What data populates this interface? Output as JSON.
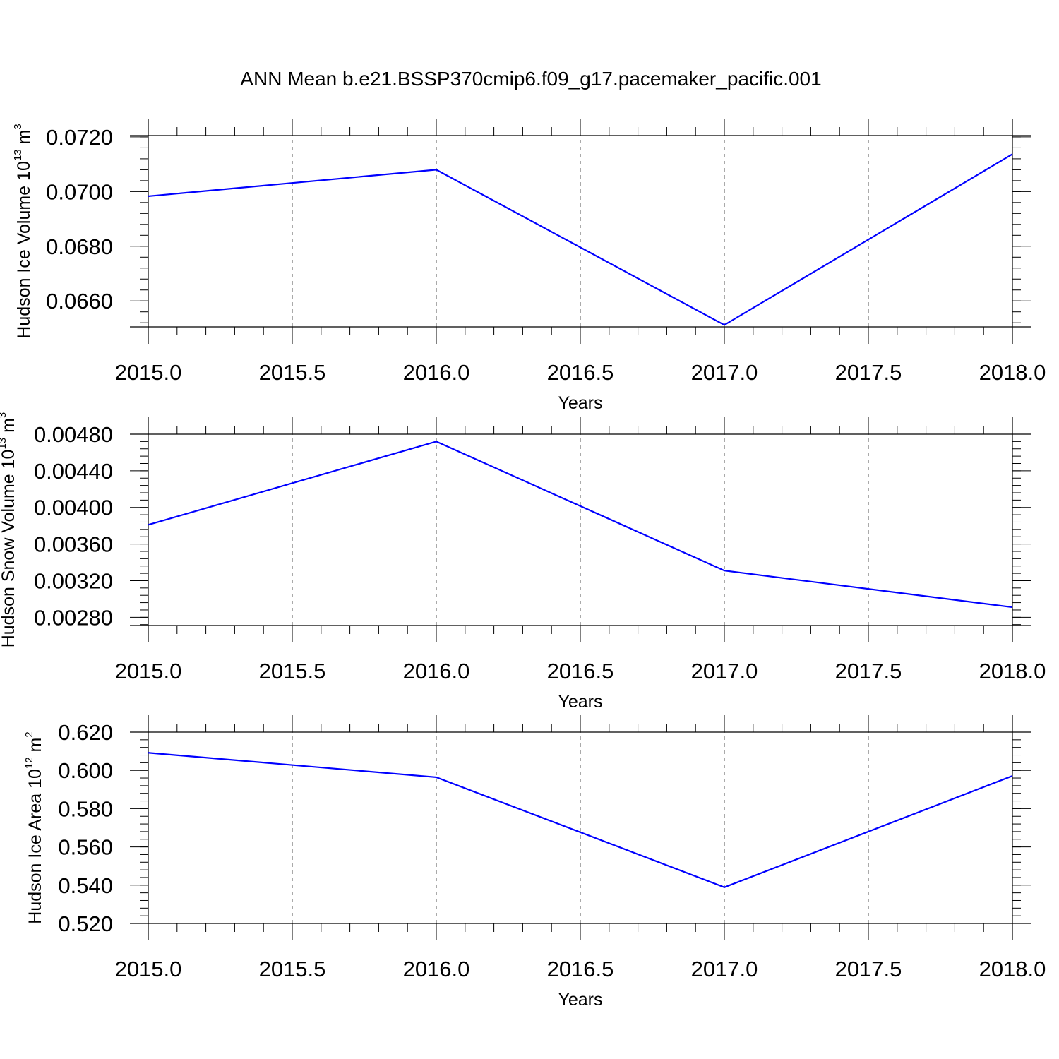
{
  "title": "ANN Mean b.e21.BSSP370cmip6.f09_g17.pacemaker_pacific.001",
  "line_color": "#0000ff",
  "chart_data": [
    {
      "type": "line",
      "x": [
        2015.0,
        2016.0,
        2017.0,
        2018.0
      ],
      "x_tick_labels": [
        "2015.0",
        "2015.5",
        "2016.0",
        "2016.5",
        "2017.0",
        "2017.5",
        "2018.0"
      ],
      "xlim": [
        2015.0,
        2018.0
      ],
      "xlabel": "Years",
      "ylabel_text": "Hudson Ice Volume 10",
      "ylabel_exp": "13",
      "ylabel_unit": " m",
      "ylabel_unit_exp": "3",
      "series": [
        {
          "values": [
            0.06983,
            0.0708,
            0.06512,
            0.07137
          ]
        }
      ],
      "ylim": [
        0.06505,
        0.07205
      ],
      "y_ticks": [
        0.066,
        0.068,
        0.07,
        0.072
      ],
      "y_tick_labels": [
        "0.0660",
        "0.0680",
        "0.0700",
        "0.0720"
      ],
      "y_minor_step": 0.0004,
      "grid": "vertical-dashed"
    },
    {
      "type": "line",
      "x": [
        2015.0,
        2016.0,
        2017.0,
        2018.0
      ],
      "x_tick_labels": [
        "2015.0",
        "2015.5",
        "2016.0",
        "2016.5",
        "2017.0",
        "2017.5",
        "2018.0"
      ],
      "xlim": [
        2015.0,
        2018.0
      ],
      "xlabel": "Years",
      "ylabel_text": "Hudson Snow Volume 10",
      "ylabel_exp": "13",
      "ylabel_unit": " m",
      "ylabel_unit_exp": "3",
      "series": [
        {
          "values": [
            0.00381,
            0.00472,
            0.00331,
            0.00291
          ]
        }
      ],
      "ylim": [
        0.00271,
        0.0048
      ],
      "y_ticks": [
        0.0028,
        0.0032,
        0.0036,
        0.004,
        0.0044,
        0.0048
      ],
      "y_tick_labels": [
        "0.00280",
        "0.00320",
        "0.00360",
        "0.00400",
        "0.00440",
        "0.00480"
      ],
      "y_minor_step": 8e-05,
      "grid": "vertical-dashed"
    },
    {
      "type": "line",
      "x": [
        2015.0,
        2016.0,
        2017.0,
        2018.0
      ],
      "x_tick_labels": [
        "2015.0",
        "2015.5",
        "2016.0",
        "2016.5",
        "2017.0",
        "2017.5",
        "2018.0"
      ],
      "xlim": [
        2015.0,
        2018.0
      ],
      "xlabel": "Years",
      "ylabel_text": "Hudson Ice Area 10",
      "ylabel_exp": "12",
      "ylabel_unit": " m",
      "ylabel_unit_exp": "2",
      "series": [
        {
          "values": [
            0.6092,
            0.5964,
            0.5389,
            0.5971
          ]
        }
      ],
      "ylim": [
        0.52,
        0.62
      ],
      "y_ticks": [
        0.52,
        0.54,
        0.56,
        0.58,
        0.6,
        0.62
      ],
      "y_tick_labels": [
        "0.520",
        "0.540",
        "0.560",
        "0.580",
        "0.600",
        "0.620"
      ],
      "y_minor_step": 0.004,
      "grid": "vertical-dashed"
    }
  ]
}
